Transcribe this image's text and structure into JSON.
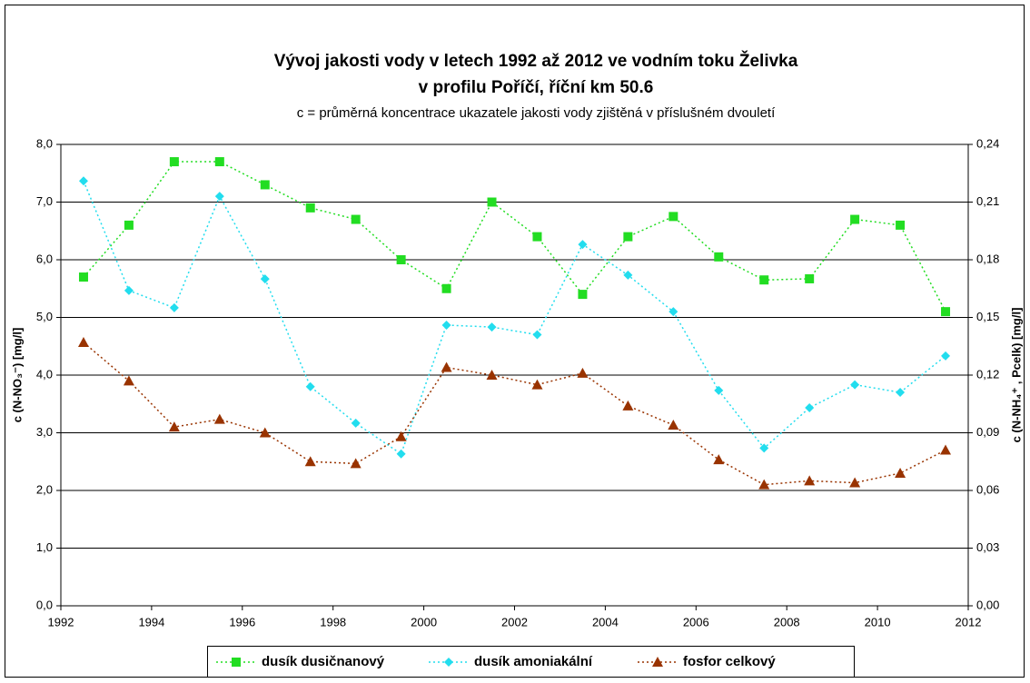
{
  "chart_data": {
    "type": "line",
    "title": [
      "Vývoj jakosti vody v letech 1992 až 2012 ve vodním toku Želivka",
      "v profilu Poříčí, říční km 50.6"
    ],
    "subtitle": "c = průměrná koncentrace ukazatele jakosti vody zjištěná v příslušném dvouletí",
    "y_label": "c (N-NO₃⁻) [mg/l]",
    "y2_label": "c (N-NH₄⁺ , Pcelk) [mg/l]",
    "x": [
      1992.5,
      1993.5,
      1994.5,
      1995.5,
      1996.5,
      1997.5,
      1998.5,
      1999.5,
      2000.5,
      2001.5,
      2002.5,
      2003.5,
      2004.5,
      2005.5,
      2006.5,
      2007.5,
      2008.5,
      2009.5,
      2010.5,
      2011.5
    ],
    "xlim": [
      1992,
      2012
    ],
    "xticks": [
      1992,
      1994,
      1996,
      1998,
      2000,
      2002,
      2004,
      2006,
      2008,
      2010,
      2012
    ],
    "ylim": [
      0,
      8
    ],
    "yticks": [
      {
        "value": 0,
        "label": "0,0"
      },
      {
        "value": 1,
        "label": "1,0"
      },
      {
        "value": 2,
        "label": "2,0"
      },
      {
        "value": 3,
        "label": "3,0"
      },
      {
        "value": 4,
        "label": "4,0"
      },
      {
        "value": 5,
        "label": "5,0"
      },
      {
        "value": 6,
        "label": "6,0"
      },
      {
        "value": 7,
        "label": "7,0"
      },
      {
        "value": 8,
        "label": "8,0"
      }
    ],
    "y2lim": [
      0,
      0.24
    ],
    "y2ticks": [
      {
        "value": 0,
        "label": "0,00"
      },
      {
        "value": 0.03,
        "label": "0,03"
      },
      {
        "value": 0.06,
        "label": "0,06"
      },
      {
        "value": 0.09,
        "label": "0,09"
      },
      {
        "value": 0.12,
        "label": "0,12"
      },
      {
        "value": 0.15,
        "label": "0,15"
      },
      {
        "value": 0.18,
        "label": "0,18"
      },
      {
        "value": 0.21,
        "label": "0,21"
      },
      {
        "value": 0.24,
        "label": "0,24"
      }
    ],
    "grid": true,
    "legend": "bottom",
    "series": [
      {
        "name": "dusík dusičnanový",
        "color": "#22dd22",
        "marker": "square",
        "axis": "y",
        "values": [
          5.7,
          6.6,
          7.7,
          7.7,
          7.3,
          6.9,
          6.7,
          6.0,
          5.5,
          7.0,
          6.4,
          5.4,
          6.4,
          6.75,
          6.05,
          5.65,
          5.67,
          6.7,
          6.6,
          5.1
        ]
      },
      {
        "name": "dusík amoniakální",
        "color": "#22ddee",
        "marker": "diamond",
        "axis": "y2",
        "values": [
          0.221,
          0.164,
          0.155,
          0.213,
          0.17,
          0.114,
          0.095,
          0.079,
          0.146,
          0.145,
          0.141,
          0.188,
          0.172,
          0.153,
          0.112,
          0.082,
          0.103,
          0.115,
          0.111,
          0.13
        ]
      },
      {
        "name": "fosfor celkový",
        "color": "#993300",
        "marker": "triangle",
        "axis": "y2",
        "values": [
          0.137,
          0.117,
          0.093,
          0.097,
          0.09,
          0.075,
          0.074,
          0.088,
          0.124,
          0.12,
          0.115,
          0.121,
          0.104,
          0.094,
          0.076,
          0.063,
          0.065,
          0.064,
          0.069,
          0.081
        ]
      }
    ]
  }
}
